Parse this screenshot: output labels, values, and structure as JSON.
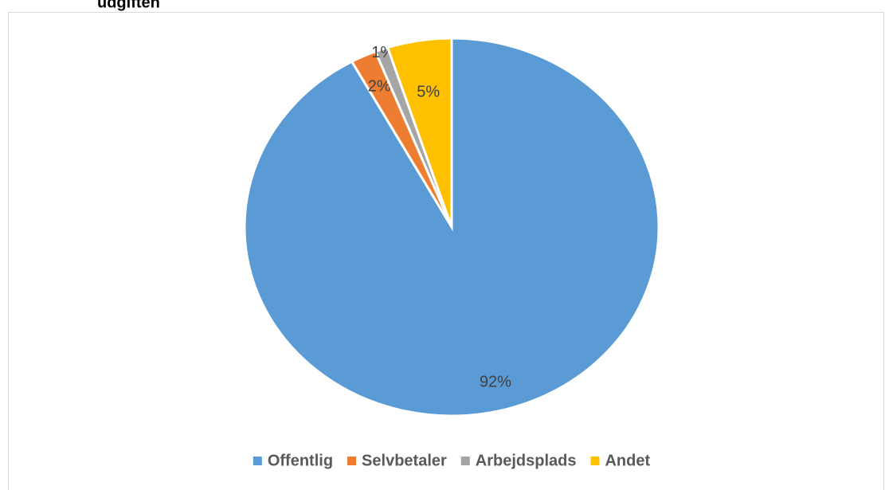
{
  "chart_data": {
    "type": "pie",
    "title": "udgiften",
    "categories": [
      "Offentlig",
      "Selvbetaler",
      "Arbejdsplads",
      "Andet"
    ],
    "values": [
      92,
      2,
      1,
      5
    ],
    "value_labels": [
      "92%",
      "2%",
      "1%",
      "5%"
    ],
    "colors": [
      "#5b9bd5",
      "#ed7d31",
      "#a5a5a5",
      "#ffc000"
    ],
    "legend": "bottom"
  }
}
